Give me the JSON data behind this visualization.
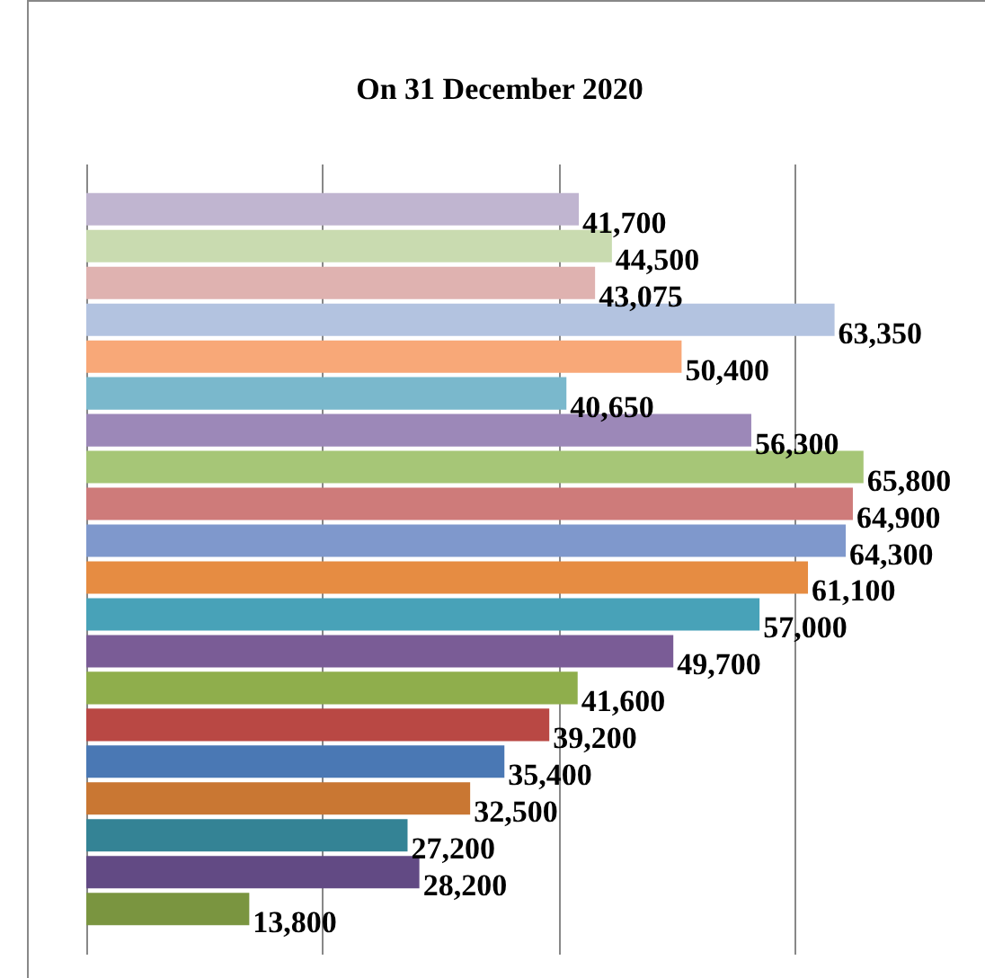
{
  "chart_data": {
    "type": "bar",
    "orientation": "horizontal",
    "title": "On 31 December 2020",
    "categories": [
      null,
      null,
      null,
      null,
      null,
      null,
      null,
      null,
      null,
      null,
      null,
      null,
      null,
      null,
      null,
      null,
      null,
      null,
      null,
      null
    ],
    "values": [
      41700,
      44500,
      43075,
      63350,
      50400,
      40650,
      56300,
      65800,
      64900,
      64300,
      61100,
      57000,
      49700,
      41600,
      39200,
      35400,
      32500,
      27200,
      28200,
      13800
    ],
    "colors": [
      "#c0b5d0",
      "#c9dbb0",
      "#dfb2b0",
      "#b3c3e0",
      "#f8a878",
      "#7ab8cc",
      "#9c88b8",
      "#a6c677",
      "#ce7b7a",
      "#7f98cc",
      "#e68c42",
      "#48a2b8",
      "#7a5c96",
      "#8fae4c",
      "#b94844",
      "#4a78b4",
      "#c97733",
      "#348395",
      "#624a84",
      "#7a9540"
    ],
    "value_labels": [
      "41,700",
      "44,500",
      "43,075",
      "63,350",
      "50,400",
      "40,650",
      "56,300",
      "65,800",
      "64,900",
      "64,300",
      "61,100",
      "57,000",
      "49,700",
      "41,600",
      "39,200",
      "35,400",
      "32,500",
      "27,200",
      "28,200",
      "13,800"
    ],
    "grid": "x",
    "tick_labels": false
  }
}
